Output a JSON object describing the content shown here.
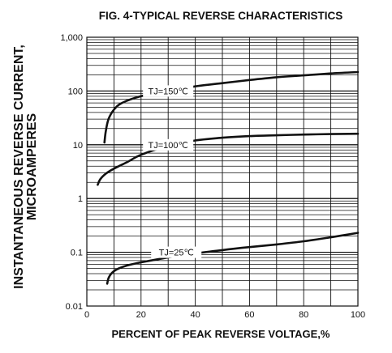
{
  "chart_data": {
    "type": "line",
    "title": "FIG. 4-TYPICAL REVERSE CHARACTERISTICS",
    "xlabel": "PERCENT OF PEAK REVERSE VOLTAGE,%",
    "ylabel_line1": "INSTANTANEOUS REVERSE CURRENT,",
    "ylabel_line2": "MICROAMPERES",
    "xlim": [
      0,
      100
    ],
    "ylim": [
      0.01,
      1000
    ],
    "yscale": "log",
    "grid": true,
    "x_ticks": [
      0,
      20,
      40,
      60,
      80,
      100
    ],
    "x_tick_labels": [
      "0",
      "20",
      "40",
      "60",
      "80",
      "100"
    ],
    "y_ticks": [
      0.01,
      0.1,
      1,
      10,
      100,
      1000
    ],
    "y_tick_labels": [
      "0.01",
      "0.1",
      "1",
      "10",
      "100",
      "1,000"
    ],
    "series": [
      {
        "name": "TJ=150℃",
        "x": [
          6.5,
          7,
          8,
          10,
          13,
          20,
          30,
          40,
          50,
          60,
          70,
          80,
          90,
          100
        ],
        "y": [
          11,
          18,
          30,
          45,
          60,
          80,
          100,
          122,
          140,
          160,
          180,
          195,
          212,
          225
        ]
      },
      {
        "name": "TJ=100℃",
        "x": [
          4,
          5,
          7,
          10,
          15,
          20,
          30,
          40,
          50,
          60,
          70,
          80,
          90,
          100
        ],
        "y": [
          1.8,
          2.3,
          2.9,
          3.6,
          4.8,
          6.5,
          9.5,
          12,
          13.5,
          14.5,
          15,
          15.5,
          15.8,
          16
        ]
      },
      {
        "name": "TJ=25℃",
        "x": [
          7.5,
          8,
          9,
          11,
          15,
          20,
          30,
          40,
          50,
          60,
          70,
          80,
          90,
          100
        ],
        "y": [
          0.026,
          0.033,
          0.04,
          0.048,
          0.057,
          0.065,
          0.08,
          0.095,
          0.11,
          0.125,
          0.14,
          0.16,
          0.19,
          0.23
        ]
      }
    ]
  }
}
